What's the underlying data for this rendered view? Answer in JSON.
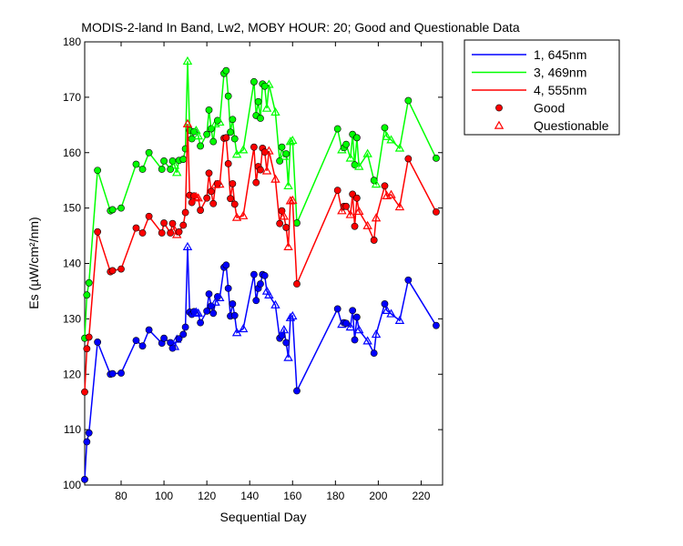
{
  "chart_data": {
    "type": "line",
    "title": "MODIS-2-land In Band,  Lw2, MOBY HOUR: 20;  Good and Questionable Data",
    "xlabel": "Sequential Day",
    "ylabel": "Es (µW/cm²/nm)",
    "xlim": [
      63,
      230
    ],
    "ylim": [
      100,
      180
    ],
    "xticks": [
      80,
      100,
      120,
      140,
      160,
      180,
      200,
      220
    ],
    "yticks": [
      100,
      110,
      120,
      130,
      140,
      150,
      160,
      170,
      180
    ],
    "grid": false,
    "legend_position": "outside-top-right",
    "legend": [
      {
        "label": "1, 645nm",
        "kind": "line",
        "color": "#0000ff"
      },
      {
        "label": "3, 469nm",
        "kind": "line",
        "color": "#00ff00"
      },
      {
        "label": "4, 555nm",
        "kind": "line",
        "color": "#ff0000"
      },
      {
        "label": "Good",
        "kind": "dot",
        "color": "#ff0000"
      },
      {
        "label": "Questionable",
        "kind": "triangle",
        "color": "#ff0000"
      }
    ],
    "x": [
      63,
      64,
      65,
      69,
      75,
      76,
      80,
      87,
      90,
      93,
      99,
      100,
      103,
      104,
      105,
      106,
      107,
      109,
      110,
      111,
      112,
      113,
      114,
      115,
      116,
      117,
      120,
      121,
      122,
      123,
      124,
      125,
      126,
      128,
      129,
      130,
      131,
      132,
      133,
      134,
      137,
      142,
      143,
      144,
      145,
      146,
      147,
      148,
      149,
      152,
      154,
      155,
      156,
      157,
      158,
      159,
      160,
      162,
      181,
      183,
      184,
      185,
      187,
      188,
      189,
      190,
      191,
      195,
      198,
      199,
      203,
      204,
      206,
      210,
      214,
      227
    ],
    "q": [
      0,
      0,
      0,
      0,
      0,
      0,
      0,
      0,
      0,
      0,
      0,
      0,
      0,
      0,
      1,
      1,
      0,
      0,
      0,
      1,
      0,
      0,
      0,
      1,
      1,
      0,
      0,
      0,
      0,
      0,
      1,
      0,
      1,
      0,
      0,
      0,
      0,
      0,
      0,
      1,
      1,
      0,
      0,
      0,
      0,
      0,
      0,
      1,
      1,
      1,
      0,
      0,
      1,
      0,
      1,
      1,
      1,
      0,
      0,
      1,
      0,
      0,
      1,
      0,
      0,
      0,
      1,
      1,
      0,
      1,
      0,
      1,
      1,
      1,
      0,
      0
    ],
    "series": [
      {
        "name": "1, 645nm",
        "color": "#0000ff",
        "values": [
          101.0,
          107.8,
          109.4,
          125.8,
          120.0,
          120.1,
          120.2,
          126.1,
          125.1,
          128.0,
          125.6,
          126.5,
          125.7,
          124.7,
          125.0,
          126.3,
          126.4,
          127.2,
          128.5,
          143.0,
          131.2,
          130.8,
          131.3,
          131.2,
          131.0,
          129.3,
          131.4,
          134.5,
          132.3,
          131.0,
          133.0,
          134.0,
          133.8,
          139.3,
          139.7,
          135.5,
          130.5,
          132.7,
          130.6,
          127.5,
          128.2,
          138.0,
          133.3,
          135.5,
          136.3,
          138.0,
          137.8,
          135.0,
          134.3,
          132.5,
          126.5,
          127.0,
          128.0,
          125.7,
          123.0,
          130.2,
          130.5,
          117.0,
          131.8,
          129.0,
          129.3,
          129.2,
          128.5,
          131.5,
          126.2,
          130.3,
          128.0,
          126.0,
          123.8,
          127.2,
          132.7,
          131.5,
          130.9,
          129.7,
          137.0,
          128.8
        ]
      },
      {
        "name": "3, 469nm",
        "color": "#00ff00",
        "values": [
          126.5,
          134.3,
          136.5,
          156.8,
          149.5,
          149.7,
          150.0,
          157.9,
          157.0,
          160.0,
          157.0,
          158.5,
          157.0,
          158.5,
          157.7,
          156.4,
          158.6,
          158.8,
          160.7,
          176.5,
          164.0,
          162.5,
          163.8,
          164.0,
          163.0,
          161.2,
          163.3,
          167.7,
          164.3,
          162.0,
          165.2,
          165.8,
          165.5,
          174.3,
          174.8,
          170.2,
          163.7,
          166.0,
          162.5,
          159.7,
          160.5,
          172.8,
          166.7,
          169.2,
          166.2,
          172.4,
          172.0,
          168.0,
          172.3,
          167.3,
          158.5,
          161.0,
          159.3,
          159.8,
          154.0,
          162.0,
          162.2,
          147.3,
          164.3,
          160.5,
          160.9,
          161.5,
          159.0,
          163.3,
          157.8,
          162.7,
          157.5,
          159.8,
          155.0,
          154.3,
          164.5,
          162.9,
          162.3,
          160.8,
          169.4,
          159.0
        ]
      },
      {
        "name": "4, 555nm",
        "color": "#ff0000",
        "values": [
          116.8,
          124.6,
          126.7,
          145.7,
          138.5,
          138.7,
          139.0,
          146.4,
          145.5,
          148.5,
          145.5,
          147.3,
          145.5,
          147.2,
          146.0,
          145.2,
          145.7,
          146.9,
          149.2,
          165.2,
          152.3,
          151.0,
          152.2,
          152.0,
          151.8,
          149.6,
          151.8,
          156.3,
          153.0,
          150.8,
          154.2,
          154.4,
          154.3,
          162.6,
          162.7,
          158.0,
          151.7,
          154.4,
          150.7,
          148.3,
          148.6,
          161.0,
          154.6,
          157.5,
          156.9,
          160.8,
          160.1,
          156.7,
          160.3,
          155.2,
          147.2,
          149.5,
          148.5,
          146.5,
          143.0,
          151.3,
          151.4,
          136.3,
          153.2,
          149.5,
          150.3,
          150.3,
          148.8,
          152.5,
          146.7,
          151.8,
          149.4,
          146.8,
          144.2,
          148.2,
          154.0,
          152.2,
          152.4,
          150.2,
          158.9,
          149.3
        ]
      }
    ]
  }
}
